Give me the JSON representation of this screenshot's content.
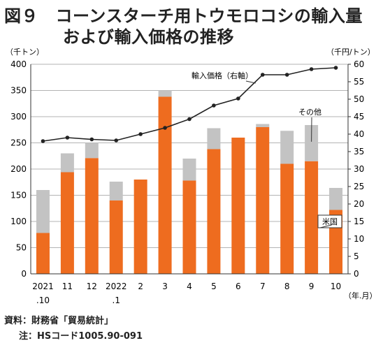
{
  "title_line1": "図９　コーンスターチ用トウモロコシの輸入量",
  "title_line2": "および輸入価格の推移",
  "left_unit": "（千トン）",
  "right_unit": "（千円/トン）",
  "x_unit": "（年.月）",
  "source": "資料：財務省「貿易統計」",
  "note": "注：HSコード1005.90-091",
  "chart_data": {
    "type": "bar",
    "categories": [
      "2021\n.10",
      "11",
      "12",
      "2022\n.1",
      "2",
      "3",
      "4",
      "5",
      "6",
      "7",
      "8",
      "9",
      "10"
    ],
    "series": [
      {
        "name": "米国",
        "values": [
          78,
          194,
          221,
          140,
          180,
          338,
          178,
          238,
          260,
          280,
          210,
          215,
          122
        ],
        "color": "#ee6c1f"
      },
      {
        "name": "その他",
        "values": [
          82,
          36,
          29,
          36,
          0,
          12,
          42,
          40,
          0,
          6,
          63,
          69,
          42
        ],
        "color": "#c3c3c3"
      },
      {
        "name": "輸入価格（右軸）",
        "values": [
          38,
          39,
          38.5,
          38.2,
          40,
          41.8,
          44.3,
          48.2,
          50.2,
          57,
          57,
          58.6,
          59
        ],
        "color": "#222222"
      }
    ],
    "ylim_left": [
      0,
      400
    ],
    "yticks_left": [
      0,
      50,
      100,
      150,
      200,
      250,
      300,
      350,
      400
    ],
    "ylim_right": [
      0,
      60
    ],
    "yticks_right": [
      0,
      5,
      10,
      15,
      20,
      25,
      30,
      35,
      40,
      45,
      50,
      55,
      60
    ],
    "grid": true,
    "legend_labels": {
      "price": "輸入価格（右軸）",
      "other": "その他",
      "us": "米国"
    }
  }
}
